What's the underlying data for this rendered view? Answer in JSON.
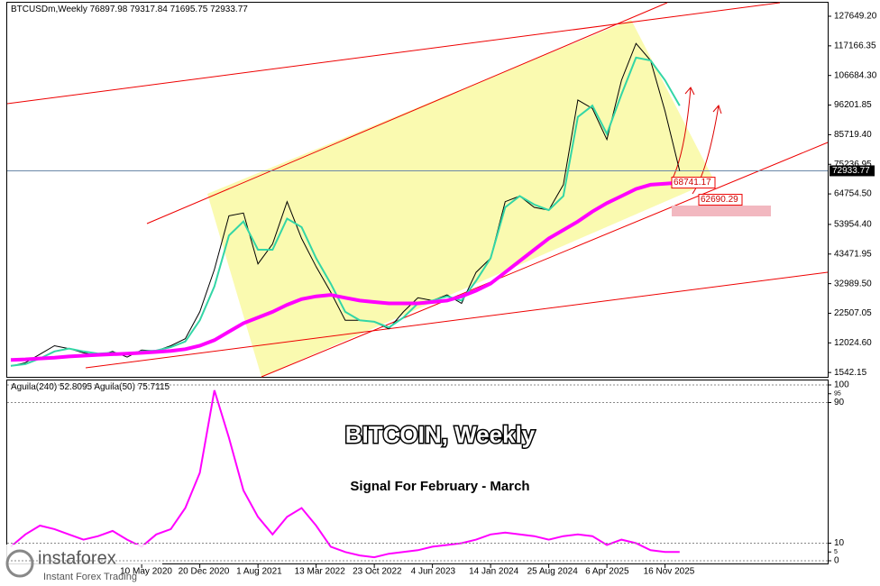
{
  "chart_data": [
    {
      "type": "line",
      "symbol": "BTCUSDm,Weekly",
      "ohlc": [
        76897.98,
        79317.84,
        71695.75,
        72933.77
      ],
      "categories": [
        null,
        null,
        null,
        null,
        null,
        null,
        null,
        null,
        null,
        "10 May 2020",
        null,
        null,
        null,
        "20 Dec 2020",
        null,
        null,
        null,
        "1 Aug 2021",
        null,
        null,
        null,
        "13 Mar 2022",
        null,
        null,
        null,
        "23 Oct 2022",
        null,
        null,
        null,
        "4 Jun 2023",
        null,
        null,
        null,
        "14 Jan 2024",
        null,
        null,
        null,
        "25 Aug 2024",
        null,
        null,
        null,
        "6 Apr 2025",
        null,
        null,
        null,
        "16 Nov 2025",
        null
      ],
      "series": [
        {
          "color": "#000000",
          "values": [
            3800,
            5000,
            8000,
            11000,
            10000,
            8500,
            7500,
            9000,
            7000,
            9500,
            9200,
            11000,
            13500,
            23000,
            38000,
            57000,
            58000,
            40000,
            47000,
            62000,
            49000,
            39000,
            30000,
            20000,
            20000,
            19500,
            17000,
            23000,
            28000,
            27000,
            29000,
            26000,
            37000,
            42000,
            62000,
            64000,
            60000,
            59000,
            68000,
            98000,
            95000,
            84000,
            105000,
            118000,
            112000,
            94000,
            72933.77
          ]
        },
        {
          "color": "#33d6a6",
          "values": [
            3900,
            4500,
            6500,
            9000,
            10000,
            9000,
            8200,
            8500,
            8000,
            9000,
            9300,
            10500,
            12500,
            20000,
            32000,
            50000,
            55000,
            45000,
            45000,
            56000,
            53000,
            42000,
            33000,
            23000,
            20000,
            19500,
            17500,
            21000,
            26000,
            27000,
            28500,
            27000,
            34000,
            42000,
            60000,
            64000,
            61000,
            59000,
            64000,
            92000,
            96000,
            86000,
            100000,
            113000,
            112000,
            105000,
            96000
          ]
        },
        {
          "color": "#ff00ff",
          "values": [
            6000,
            6200,
            6500,
            6800,
            7200,
            7500,
            7800,
            8000,
            8200,
            8500,
            8800,
            9200,
            9800,
            11000,
            13000,
            16000,
            19000,
            21000,
            23000,
            25500,
            27500,
            28500,
            29000,
            28000,
            27000,
            26500,
            26000,
            26000,
            26000,
            26500,
            27000,
            28500,
            30500,
            33000,
            37000,
            41000,
            45000,
            49000,
            52000,
            55000,
            58500,
            61500,
            64000,
            66500,
            68000,
            68400,
            68741.17
          ]
        }
      ],
      "price_levels": [
        68741.17,
        62690.29
      ],
      "last_price": 72933.77,
      "ylim": [
        0,
        131800
      ],
      "yticks": [
        1542.15,
        {
          "value": 12024.6,
          "label": "12024.60"
        },
        22507.05,
        {
          "value": 32989.5,
          "label": "32989.50"
        },
        {
          "value": 43471.95,
          "label": "43471.95"
        },
        {
          "value": 53954.4,
          "label": "53954.40"
        },
        {
          "value": 64754.5,
          "label": "64754.50"
        },
        75236.95,
        {
          "value": 85719.4,
          "label": "85719.40"
        },
        96201.85,
        {
          "value": 106684.3,
          "label": "106684.30"
        },
        117166.35,
        {
          "value": 127649.2,
          "label": "127649.20"
        }
      ]
    },
    {
      "type": "line",
      "indicators": [
        {
          "name": "Aguila(240)",
          "value": 52.8095
        },
        {
          "name": "Aguila(50)",
          "value": 75.7115
        }
      ],
      "color": "#ff00ff",
      "values": [
        8,
        15,
        20,
        18,
        15,
        12,
        14,
        17,
        12,
        8,
        15,
        18,
        30,
        50,
        97,
        70,
        40,
        25,
        15,
        25,
        30,
        20,
        8,
        5,
        3,
        2,
        4,
        5,
        6,
        8,
        9,
        10,
        12,
        15,
        16,
        15,
        14,
        12,
        14,
        15,
        14,
        9,
        12,
        10,
        6,
        5,
        5
      ],
      "ylim": [
        0,
        100
      ],
      "yticks": [
        100,
        95,
        90,
        10,
        5,
        0
      ]
    }
  ],
  "overlay": {
    "title": "BITCOIN, Weekly",
    "subtitle": "Signal For February - March"
  },
  "logo": {
    "name": "instaforex",
    "tagline": "Instant Forex Trading"
  }
}
